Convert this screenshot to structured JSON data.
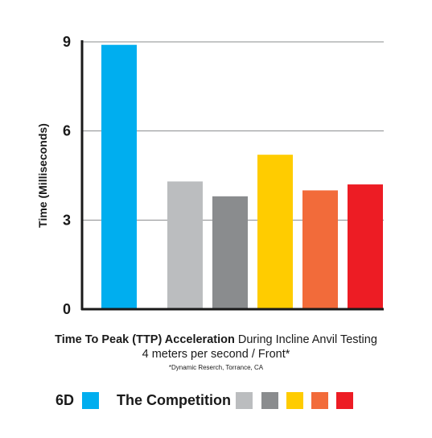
{
  "chart_data": {
    "type": "bar",
    "title": "",
    "ylabel": "Time (Milliseconds)",
    "xlabel": "",
    "ylim": [
      0,
      9
    ],
    "yticks": [
      0,
      3,
      6,
      9
    ],
    "grid": "horizontal",
    "categories": [
      "6D",
      "Competition 1",
      "Competition 2",
      "Competition 3",
      "Competition 4",
      "Competition 5"
    ],
    "values": [
      8.9,
      4.3,
      3.8,
      5.2,
      4.0,
      4.2
    ],
    "colors": [
      "#00aeef",
      "#bbbdbf",
      "#8a8c8e",
      "#ffcc00",
      "#f26b3a",
      "#ed1c24"
    ]
  },
  "caption": {
    "title_bold": "Time To Peak (TTP) Acceleration",
    "title_rest": " During Incline Anvil Testing",
    "subtitle": "4 meters per second / Front*",
    "source": "*Dynamic Reserch, Torrance, CA"
  },
  "legend": {
    "brand_label": "6D",
    "brand_color": "#00aeef",
    "competition_label": "The Competition",
    "competition_colors": [
      "#bbbdbf",
      "#8a8c8e",
      "#ffcc00",
      "#f26b3a",
      "#ed1c24"
    ]
  }
}
